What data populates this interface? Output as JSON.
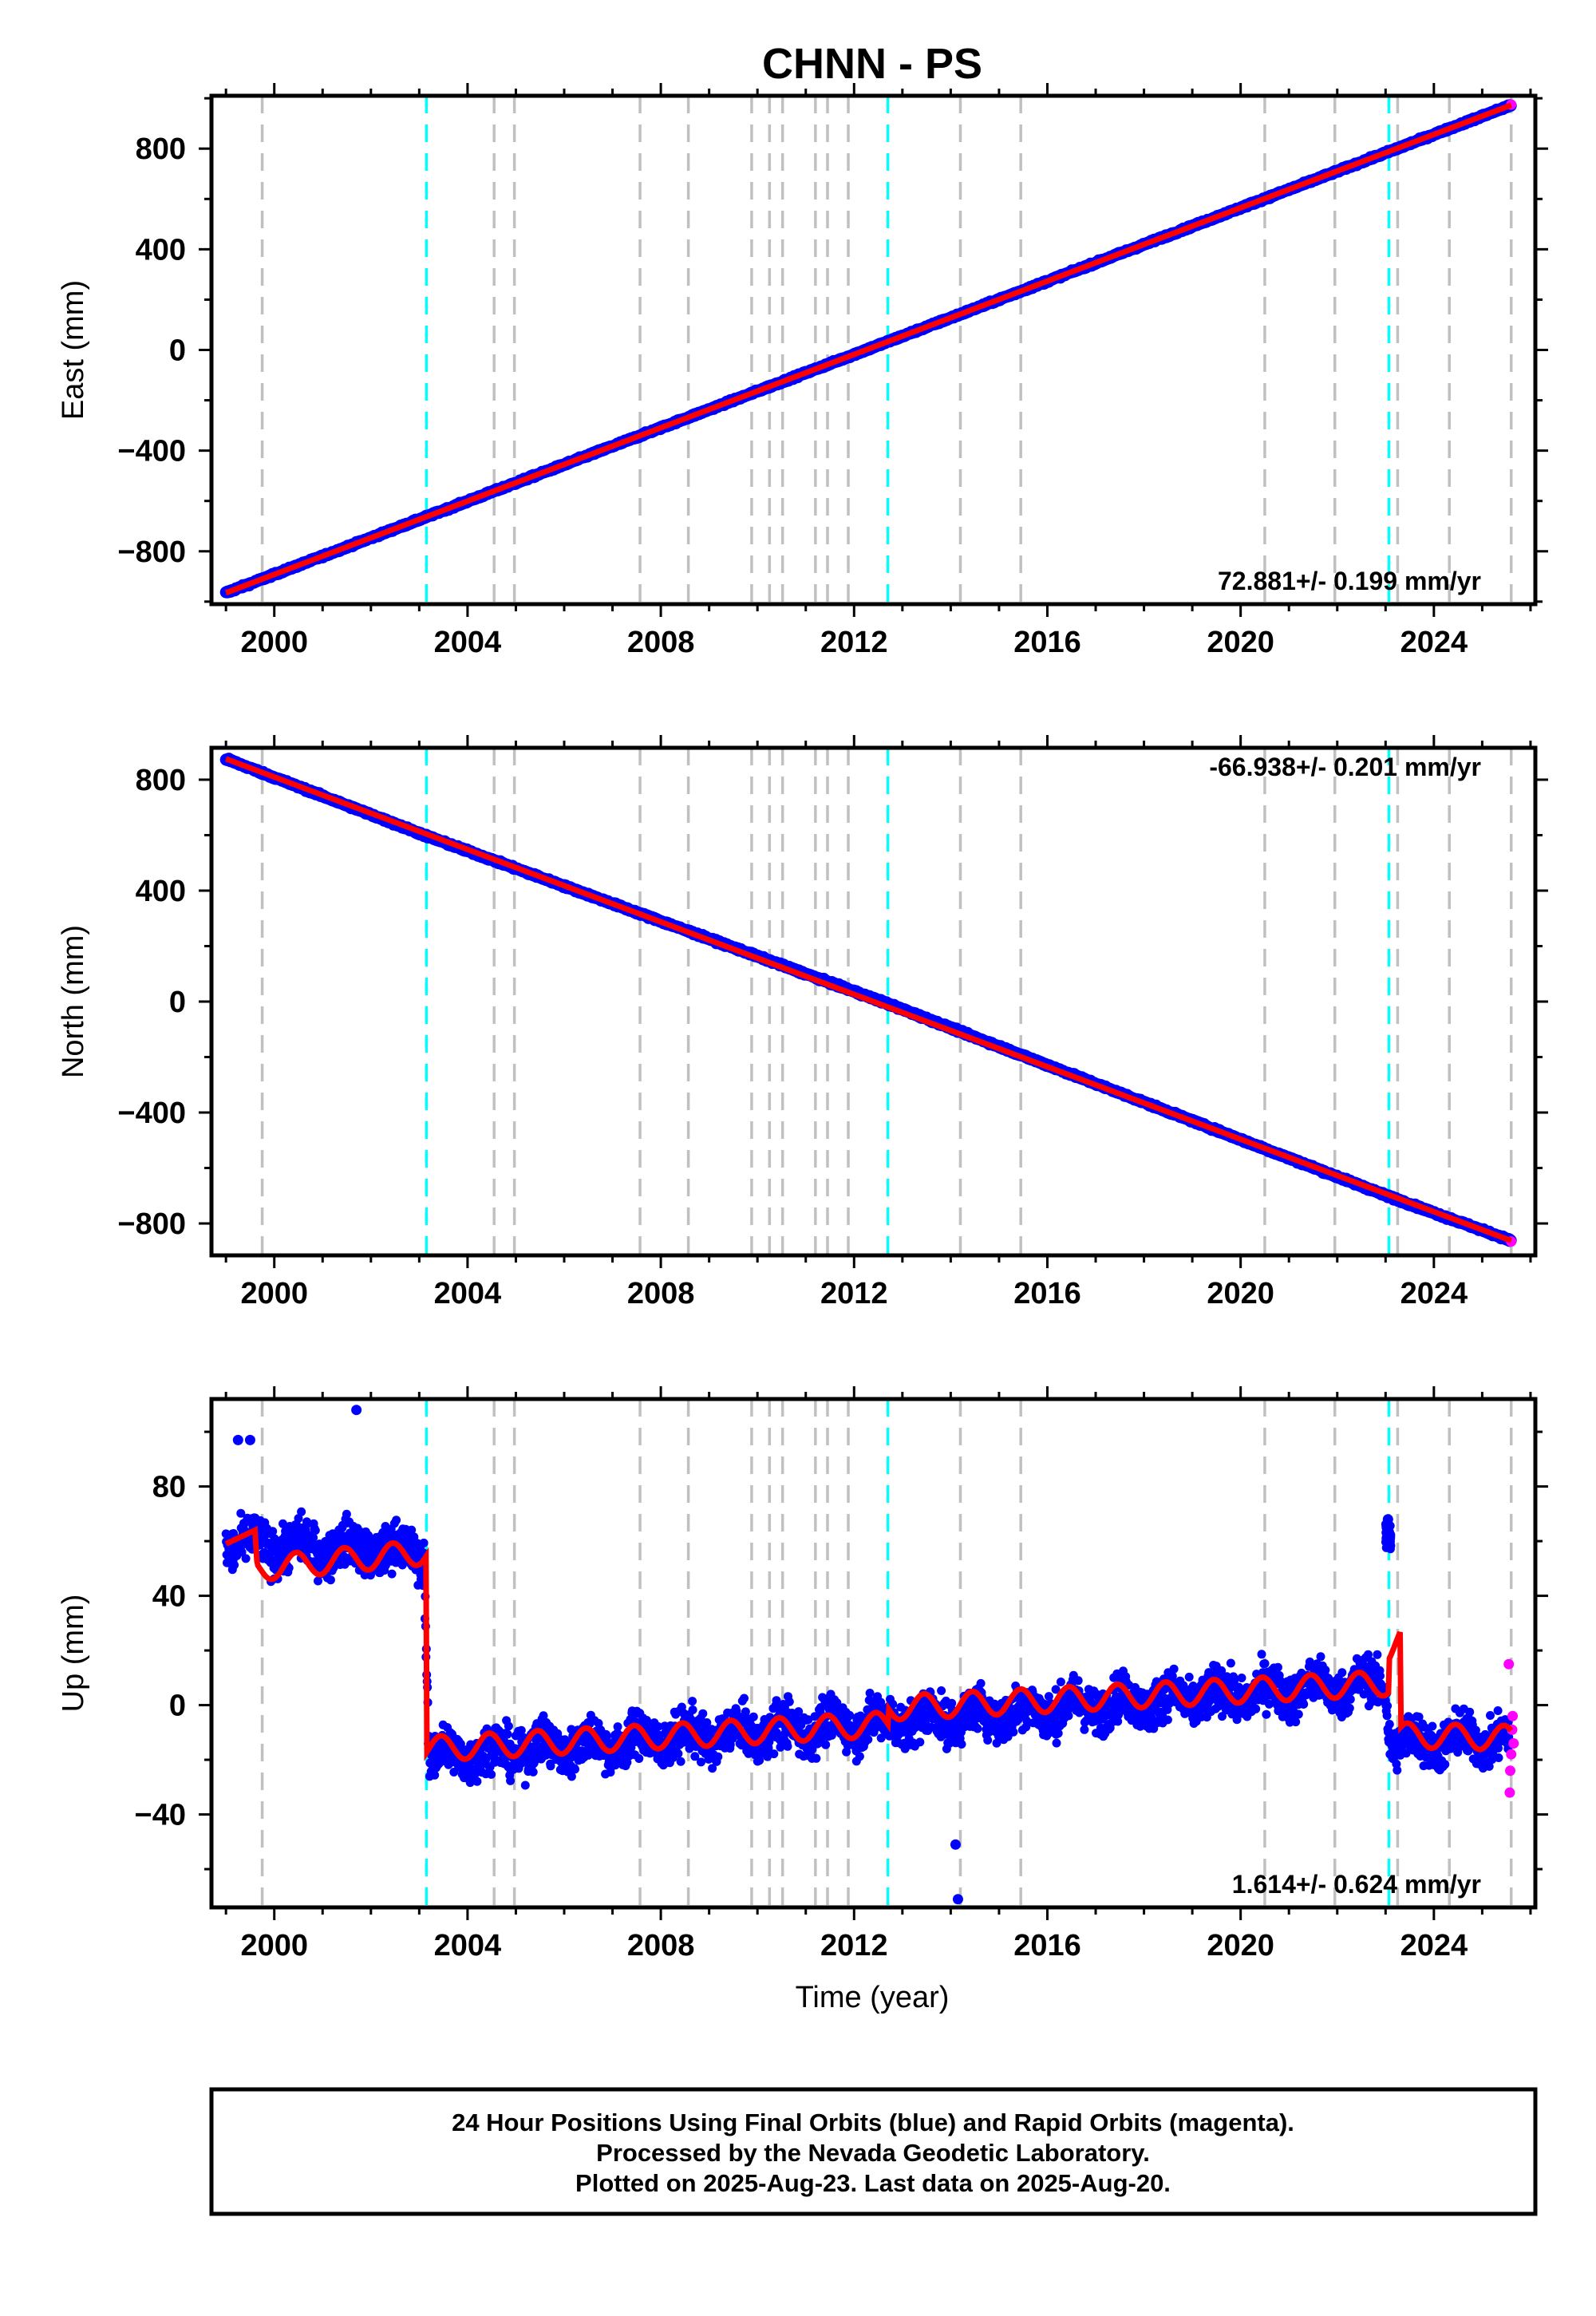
{
  "chart_data": {
    "type": "scatter",
    "title": "CHNN - PS",
    "xlabel": "Time (year)",
    "xlim": [
      1998.7,
      2026.1
    ],
    "xticks": [
      2000,
      2004,
      2008,
      2012,
      2016,
      2020,
      2024
    ],
    "xtick_labels": [
      "2000",
      "2004",
      "2008",
      "2012",
      "2016",
      "2020",
      "2024"
    ],
    "event_lines": {
      "gray": [
        1999.75,
        2004.55,
        2004.97,
        2007.57,
        2008.57,
        2009.88,
        2010.25,
        2010.52,
        2011.2,
        2011.45,
        2011.88,
        2014.2,
        2015.45,
        2020.5,
        2021.95,
        2023.25,
        2024.32,
        2025.6
      ],
      "cyan": [
        2003.15,
        2012.7,
        2023.07
      ]
    },
    "colors": {
      "final": "#0000ff",
      "rapid": "#ff00ff",
      "model": "#ff0000",
      "equipment": "#c0c0c0",
      "earthquake": "#00ffff"
    },
    "panels": [
      {
        "ylabel": "East (mm)",
        "ylim": [
          -1010,
          1010
        ],
        "yticks": [
          -800,
          -400,
          0,
          400,
          800
        ],
        "ytick_labels": [
          "−800",
          "−400",
          "0",
          "400",
          "800"
        ],
        "rate_label": "72.881+/- 0.199 mm/yr",
        "rate_position": "bottom-right",
        "series": [
          {
            "kind": "final",
            "x": [
              1999.0,
              2003.15,
              2012.7,
              2023.07,
              2025.6
            ],
            "y": [
              -965,
              -663,
              33,
              788,
              973
            ]
          },
          {
            "kind": "rapid",
            "x": [
              2025.6
            ],
            "y": [
              975
            ]
          },
          {
            "kind": "model",
            "x": [
              1999.0,
              2025.6
            ],
            "y": [
              -965,
              973
            ]
          }
        ]
      },
      {
        "ylabel": "North (mm)",
        "ylim": [
          -915,
          915
        ],
        "yticks": [
          -800,
          -400,
          0,
          400,
          800
        ],
        "ytick_labels": [
          "−800",
          "−400",
          "0",
          "400",
          "800"
        ],
        "rate_label": "-66.938+/- 0.201 mm/yr",
        "rate_position": "top-right",
        "series": [
          {
            "kind": "final",
            "x": [
              1999.0,
              2003.15,
              2012.7,
              2023.07,
              2025.6
            ],
            "y": [
              875,
              597,
              -8,
              -703,
              -862
            ]
          },
          {
            "kind": "rapid",
            "x": [
              2025.6
            ],
            "y": [
              -865
            ]
          },
          {
            "kind": "model",
            "x": [
              1999.0,
              2025.6
            ],
            "y": [
              875,
              -862
            ]
          }
        ]
      },
      {
        "ylabel": "Up (mm)",
        "ylim": [
          -74,
          112
        ],
        "yticks": [
          -40,
          0,
          40,
          80
        ],
        "ytick_labels": [
          "−40",
          "0",
          "40",
          "80"
        ],
        "rate_label": "1.614+/- 0.624 mm/yr",
        "rate_position": "bottom-right",
        "series": [
          {
            "kind": "final",
            "x": [
              1999.0,
              2003.1,
              2003.2,
              2023.0,
              2023.1,
              2025.55
            ],
            "y": [
              59,
              56,
              -19,
              8,
              -14,
              -12
            ]
          },
          {
            "kind": "final_outliers",
            "x": [
              1999.25,
              1999.5,
              2001.7,
              2014.1,
              2014.15,
              2023.05,
              2023.08
            ],
            "y": [
              97,
              97,
              108,
              -51,
              -71,
              68,
              61
            ]
          },
          {
            "kind": "rapid",
            "x": [
              2025.55,
              2025.57,
              2025.58,
              2025.6,
              2025.62,
              2025.63,
              2025.65
            ],
            "y": [
              15,
              -32,
              -24,
              -18,
              -9,
              -4,
              -14
            ]
          },
          {
            "kind": "model",
            "x": [
              1999.0,
              1999.6,
              1999.65,
              2003.15,
              2003.15,
              2012.7,
              2012.7,
              2023.07,
              2023.07,
              2023.3,
              2023.3,
              2025.6
            ],
            "y": [
              59,
              64,
              50,
              56,
              -16,
              -7,
              -1,
              8,
              20,
              24,
              -11,
              -12
            ]
          }
        ]
      }
    ]
  },
  "footer": {
    "line1": "24 Hour Positions Using Final Orbits (blue) and Rapid Orbits (magenta).",
    "line2": "Processed by the Nevada Geodetic Laboratory.",
    "line3": "Plotted on 2025-Aug-23. Last data on 2025-Aug-20."
  }
}
